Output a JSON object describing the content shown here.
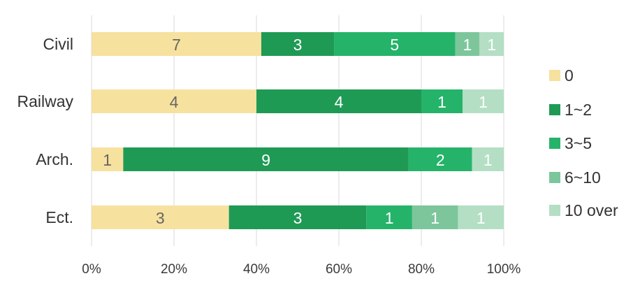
{
  "chart_data": {
    "type": "bar",
    "orientation": "horizontal",
    "stacked": "percent",
    "title": "",
    "xlabel": "",
    "ylabel": "",
    "categories": [
      "Civil",
      "Railway",
      "Arch.",
      "Ect."
    ],
    "series": [
      {
        "name": "0",
        "color": "#f7e19e",
        "label_color": "#666666",
        "values": [
          7,
          4,
          1,
          3
        ]
      },
      {
        "name": "1~2",
        "color": "#1f9a55",
        "label_color": "#ffffff",
        "values": [
          3,
          4,
          9,
          3
        ]
      },
      {
        "name": "3~5",
        "color": "#25b36a",
        "label_color": "#ffffff",
        "values": [
          5,
          1,
          2,
          1
        ]
      },
      {
        "name": "6~10",
        "color": "#7dc69c",
        "label_color": "#ffffff",
        "values": [
          1,
          0,
          0,
          1
        ]
      },
      {
        "name": "10 over",
        "color": "#b4dfc4",
        "label_color": "#ffffff",
        "values": [
          1,
          1,
          1,
          1
        ]
      }
    ],
    "xlim": [
      0,
      100
    ],
    "x_ticks": [
      "0%",
      "20%",
      "40%",
      "60%",
      "80%",
      "100%"
    ],
    "grid": "vertical",
    "legend_position": "right"
  }
}
